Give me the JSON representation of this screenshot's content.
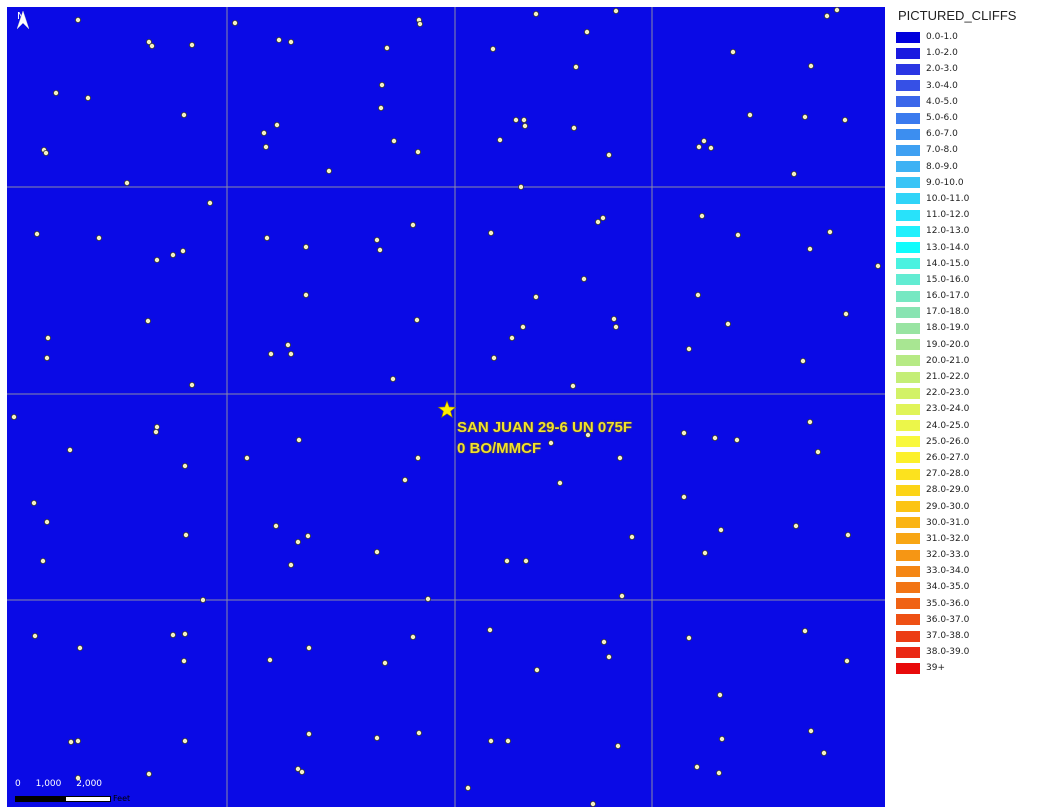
{
  "map": {
    "background_color": "#0a0ae6",
    "grid_color": "#8a8aa8",
    "north_arrow_label": "N",
    "highlight": {
      "line1": "SAN JUAN 29-6 UN 075F",
      "line2": "0 BO/MMCF",
      "star_color": "#ffee00"
    },
    "scale_bar": {
      "ticks": [
        "0",
        "1,000",
        "2,000"
      ],
      "unit": "Feet"
    }
  },
  "legend": {
    "title": "PICTURED_CLIFFS",
    "items": [
      {
        "label": "0.0-1.0",
        "color": "#0000dd"
      },
      {
        "label": "1.0-2.0",
        "color": "#1a1ae0"
      },
      {
        "label": "2.0-3.0",
        "color": "#2a36e3"
      },
      {
        "label": "3.0-4.0",
        "color": "#3650e6"
      },
      {
        "label": "4.0-5.0",
        "color": "#3a66ea"
      },
      {
        "label": "5.0-6.0",
        "color": "#3a7aee"
      },
      {
        "label": "6.0-7.0",
        "color": "#3c8ef0"
      },
      {
        "label": "7.0-8.0",
        "color": "#3ea0f2"
      },
      {
        "label": "8.0-9.0",
        "color": "#3eb2f4"
      },
      {
        "label": "9.0-10.0",
        "color": "#38c4f6"
      },
      {
        "label": "10.0-11.0",
        "color": "#30d4f8"
      },
      {
        "label": "11.0-12.0",
        "color": "#28e2fa"
      },
      {
        "label": "12.0-13.0",
        "color": "#20f0fc"
      },
      {
        "label": "13.0-14.0",
        "color": "#10fcfc"
      },
      {
        "label": "14.0-15.0",
        "color": "#4af2e0"
      },
      {
        "label": "15.0-16.0",
        "color": "#62ecd2"
      },
      {
        "label": "16.0-17.0",
        "color": "#76e8c2"
      },
      {
        "label": "17.0-18.0",
        "color": "#88e4b2"
      },
      {
        "label": "18.0-19.0",
        "color": "#98e4a2"
      },
      {
        "label": "19.0-20.0",
        "color": "#a8e692"
      },
      {
        "label": "20.0-21.0",
        "color": "#b6ea84"
      },
      {
        "label": "21.0-22.0",
        "color": "#c4ee76"
      },
      {
        "label": "22.0-23.0",
        "color": "#d2f266"
      },
      {
        "label": "23.0-24.0",
        "color": "#e0f458"
      },
      {
        "label": "24.0-25.0",
        "color": "#ecf64a"
      },
      {
        "label": "25.0-26.0",
        "color": "#f8f83c"
      },
      {
        "label": "26.0-27.0",
        "color": "#fcf02a"
      },
      {
        "label": "27.0-28.0",
        "color": "#fce21e"
      },
      {
        "label": "28.0-29.0",
        "color": "#fcd416"
      },
      {
        "label": "29.0-30.0",
        "color": "#fcc414"
      },
      {
        "label": "30.0-31.0",
        "color": "#fab414"
      },
      {
        "label": "31.0-32.0",
        "color": "#f8a614"
      },
      {
        "label": "32.0-33.0",
        "color": "#f69614"
      },
      {
        "label": "33.0-34.0",
        "color": "#f48614"
      },
      {
        "label": "34.0-35.0",
        "color": "#f27414"
      },
      {
        "label": "35.0-36.0",
        "color": "#f06214"
      },
      {
        "label": "36.0-37.0",
        "color": "#ee5014"
      },
      {
        "label": "37.0-38.0",
        "color": "#ec3c14"
      },
      {
        "label": "38.0-39.0",
        "color": "#ea2814"
      },
      {
        "label": "39+",
        "color": "#e80a0a"
      }
    ]
  }
}
